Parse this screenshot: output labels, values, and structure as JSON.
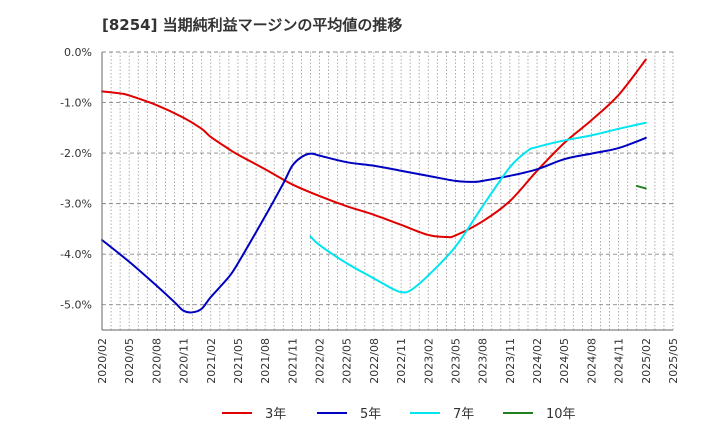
{
  "chart_data": {
    "type": "line",
    "title": "[8254]  当期純利益マージンの平均値の推移",
    "xlabel": "",
    "ylabel": "",
    "x_tick_labels": [
      "2020/02",
      "2020/05",
      "2020/08",
      "2020/11",
      "2021/02",
      "2021/05",
      "2021/08",
      "2021/11",
      "2022/02",
      "2022/05",
      "2022/08",
      "2022/11",
      "2023/02",
      "2023/05",
      "2023/08",
      "2023/11",
      "2024/02",
      "2024/05",
      "2024/08",
      "2024/11",
      "2025/02",
      "2025/05"
    ],
    "y_ticks": [
      0,
      -1,
      -2,
      -3,
      -4,
      -5
    ],
    "y_tick_labels": [
      "0.0%",
      "-1.0%",
      "-2.0%",
      "-3.0%",
      "-4.0%",
      "-5.0%"
    ],
    "ylim": [
      -5.5,
      0
    ],
    "xlim": [
      "2020/02",
      "2025/05"
    ],
    "grid": true,
    "legend_position": "bottom",
    "series": [
      {
        "name": "3年",
        "color": "#e00000",
        "points": [
          [
            "2020/02",
            -0.78
          ],
          [
            "2020/04",
            -0.82
          ],
          [
            "2020/05",
            -0.86
          ],
          [
            "2020/08",
            -1.05
          ],
          [
            "2020/11",
            -1.3
          ],
          [
            "2021/01",
            -1.52
          ],
          [
            "2021/02",
            -1.68
          ],
          [
            "2021/04",
            -1.92
          ],
          [
            "2021/05",
            -2.03
          ],
          [
            "2021/08",
            -2.32
          ],
          [
            "2021/11",
            -2.62
          ],
          [
            "2022/02",
            -2.85
          ],
          [
            "2022/05",
            -3.05
          ],
          [
            "2022/08",
            -3.22
          ],
          [
            "2022/11",
            -3.42
          ],
          [
            "2023/02",
            -3.62
          ],
          [
            "2023/04",
            -3.66
          ],
          [
            "2023/05",
            -3.63
          ],
          [
            "2023/08",
            -3.35
          ],
          [
            "2023/11",
            -2.95
          ],
          [
            "2024/02",
            -2.35
          ],
          [
            "2024/05",
            -1.8
          ],
          [
            "2024/08",
            -1.35
          ],
          [
            "2024/11",
            -0.85
          ],
          [
            "2025/02",
            -0.15
          ]
        ]
      },
      {
        "name": "5年",
        "color": "#0000c0",
        "points": [
          [
            "2020/02",
            -3.72
          ],
          [
            "2020/05",
            -4.15
          ],
          [
            "2020/08",
            -4.62
          ],
          [
            "2020/10",
            -4.95
          ],
          [
            "2020/11",
            -5.12
          ],
          [
            "2020/12",
            -5.15
          ],
          [
            "2021/01",
            -5.08
          ],
          [
            "2021/02",
            -4.85
          ],
          [
            "2021/04",
            -4.45
          ],
          [
            "2021/05",
            -4.18
          ],
          [
            "2021/08",
            -3.25
          ],
          [
            "2021/10",
            -2.6
          ],
          [
            "2021/11",
            -2.25
          ],
          [
            "2021/12",
            -2.08
          ],
          [
            "2022/01",
            -2.01
          ],
          [
            "2022/02",
            -2.05
          ],
          [
            "2022/05",
            -2.18
          ],
          [
            "2022/08",
            -2.25
          ],
          [
            "2022/11",
            -2.35
          ],
          [
            "2023/02",
            -2.45
          ],
          [
            "2023/05",
            -2.55
          ],
          [
            "2023/07",
            -2.57
          ],
          [
            "2023/08",
            -2.55
          ],
          [
            "2023/11",
            -2.45
          ],
          [
            "2024/02",
            -2.32
          ],
          [
            "2024/05",
            -2.12
          ],
          [
            "2024/08",
            -2.01
          ],
          [
            "2024/11",
            -1.9
          ],
          [
            "2025/02",
            -1.7
          ]
        ]
      },
      {
        "name": "7年",
        "color": "#00e5f0",
        "points": [
          [
            "2022/01",
            -3.65
          ],
          [
            "2022/02",
            -3.82
          ],
          [
            "2022/05",
            -4.18
          ],
          [
            "2022/08",
            -4.48
          ],
          [
            "2022/10",
            -4.68
          ],
          [
            "2022/11",
            -4.75
          ],
          [
            "2022/12",
            -4.72
          ],
          [
            "2023/02",
            -4.42
          ],
          [
            "2023/05",
            -3.85
          ],
          [
            "2023/08",
            -3.05
          ],
          [
            "2023/11",
            -2.28
          ],
          [
            "2024/01",
            -1.95
          ],
          [
            "2024/02",
            -1.88
          ],
          [
            "2024/05",
            -1.75
          ],
          [
            "2024/08",
            -1.65
          ],
          [
            "2024/11",
            -1.52
          ],
          [
            "2025/02",
            -1.4
          ]
        ]
      },
      {
        "name": "10年",
        "color": "#208020",
        "points": [
          [
            "2025/01",
            -2.65
          ],
          [
            "2025/02",
            -2.7
          ]
        ]
      }
    ]
  }
}
